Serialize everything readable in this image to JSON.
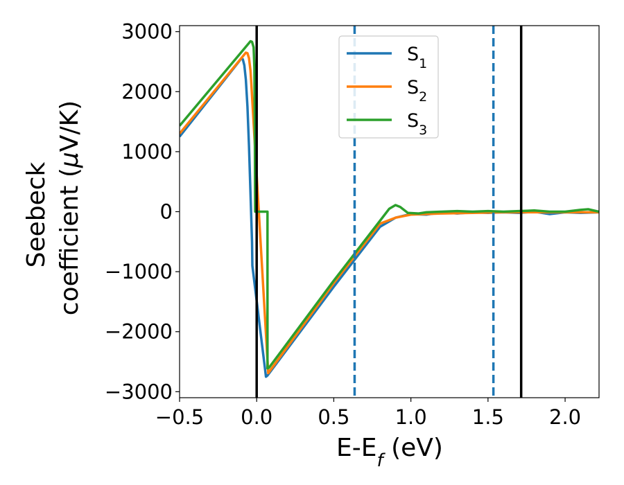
{
  "chart_data": {
    "type": "line",
    "title": "",
    "xlabel_main": "E-E",
    "xlabel_sub": "f",
    "xlabel_unit": " (eV)",
    "ylabel_line1": "Seebeck",
    "ylabel_line2_a": "coefficient  (",
    "ylabel_line2_mu": "μ",
    "ylabel_line2_b": "V/K)",
    "xlim": [
      -0.5,
      2.22
    ],
    "ylim": [
      -3100,
      3100
    ],
    "xticks": [
      {
        "value": -0.5,
        "label": "−0.5"
      },
      {
        "value": 0.0,
        "label": "0.0"
      },
      {
        "value": 0.5,
        "label": "0.5"
      },
      {
        "value": 1.0,
        "label": "1.0"
      },
      {
        "value": 1.5,
        "label": "1.5"
      },
      {
        "value": 2.0,
        "label": "2.0"
      }
    ],
    "yticks": [
      {
        "value": 3000,
        "label": "3000"
      },
      {
        "value": 2000,
        "label": "2000"
      },
      {
        "value": 1000,
        "label": "1000"
      },
      {
        "value": 0,
        "label": "0"
      },
      {
        "value": -1000,
        "label": "−1000"
      },
      {
        "value": -2000,
        "label": "−2000"
      },
      {
        "value": -3000,
        "label": "−3000"
      }
    ],
    "vertical_lines": [
      {
        "x": 0.0,
        "style": "solid",
        "color": "#000000"
      },
      {
        "x": 0.635,
        "style": "dashed",
        "color": "#1f77b4"
      },
      {
        "x": 1.535,
        "style": "dashed",
        "color": "#1f77b4"
      },
      {
        "x": 1.715,
        "style": "solid",
        "color": "#000000"
      }
    ],
    "legend": {
      "position": "top-center"
    },
    "series": [
      {
        "name": "S",
        "sub": "1",
        "color": "#1f77b4",
        "points": [
          [
            -0.5,
            1250
          ],
          [
            -0.1,
            2550
          ],
          [
            -0.09,
            2540
          ],
          [
            -0.08,
            2440
          ],
          [
            -0.07,
            2200
          ],
          [
            -0.06,
            1750
          ],
          [
            -0.05,
            1100
          ],
          [
            -0.04,
            300
          ],
          [
            -0.03,
            -500
          ],
          [
            -0.028,
            -900
          ],
          [
            0.06,
            -2750
          ],
          [
            0.07,
            -2730
          ],
          [
            0.5,
            -1250
          ],
          [
            0.8,
            -250
          ],
          [
            0.9,
            -100
          ],
          [
            1.0,
            -40
          ],
          [
            1.1,
            -50
          ],
          [
            1.2,
            -10
          ],
          [
            1.3,
            -30
          ],
          [
            1.4,
            -10
          ],
          [
            1.5,
            -20
          ],
          [
            1.6,
            -10
          ],
          [
            1.7,
            -20
          ],
          [
            1.8,
            0
          ],
          [
            1.9,
            -40
          ],
          [
            2.0,
            -10
          ],
          [
            2.1,
            -20
          ],
          [
            2.22,
            -10
          ]
        ]
      },
      {
        "name": "S",
        "sub": "2",
        "color": "#ff7f0e",
        "points": [
          [
            -0.5,
            1300
          ],
          [
            -0.07,
            2650
          ],
          [
            -0.06,
            2640
          ],
          [
            -0.05,
            2560
          ],
          [
            -0.04,
            2350
          ],
          [
            -0.035,
            2150
          ],
          [
            0.075,
            -2690
          ],
          [
            0.5,
            -1190
          ],
          [
            0.8,
            -200
          ],
          [
            0.9,
            -100
          ],
          [
            1.0,
            -50
          ],
          [
            1.2,
            -30
          ],
          [
            1.4,
            -20
          ],
          [
            1.6,
            -10
          ],
          [
            1.8,
            -10
          ],
          [
            2.0,
            -10
          ],
          [
            2.22,
            -10
          ]
        ]
      },
      {
        "name": "S",
        "sub": "3",
        "color": "#2ca02c",
        "points": [
          [
            -0.5,
            1430
          ],
          [
            -0.04,
            2840
          ],
          [
            -0.03,
            2830
          ],
          [
            -0.02,
            2740
          ],
          [
            -0.015,
            2400
          ],
          [
            -0.012,
            1500
          ],
          [
            -0.01,
            0
          ],
          [
            0.07,
            0
          ],
          [
            0.07,
            -2610
          ],
          [
            0.08,
            -2600
          ],
          [
            0.5,
            -1150
          ],
          [
            0.8,
            -150
          ],
          [
            0.86,
            50
          ],
          [
            0.9,
            110
          ],
          [
            0.93,
            80
          ],
          [
            0.98,
            -20
          ],
          [
            1.05,
            -30
          ],
          [
            1.1,
            -10
          ],
          [
            1.2,
            0
          ],
          [
            1.3,
            10
          ],
          [
            1.4,
            0
          ],
          [
            1.5,
            10
          ],
          [
            1.6,
            0
          ],
          [
            1.7,
            10
          ],
          [
            1.8,
            20
          ],
          [
            1.9,
            0
          ],
          [
            2.0,
            0
          ],
          [
            2.1,
            30
          ],
          [
            2.15,
            40
          ],
          [
            2.22,
            0
          ]
        ]
      }
    ]
  }
}
